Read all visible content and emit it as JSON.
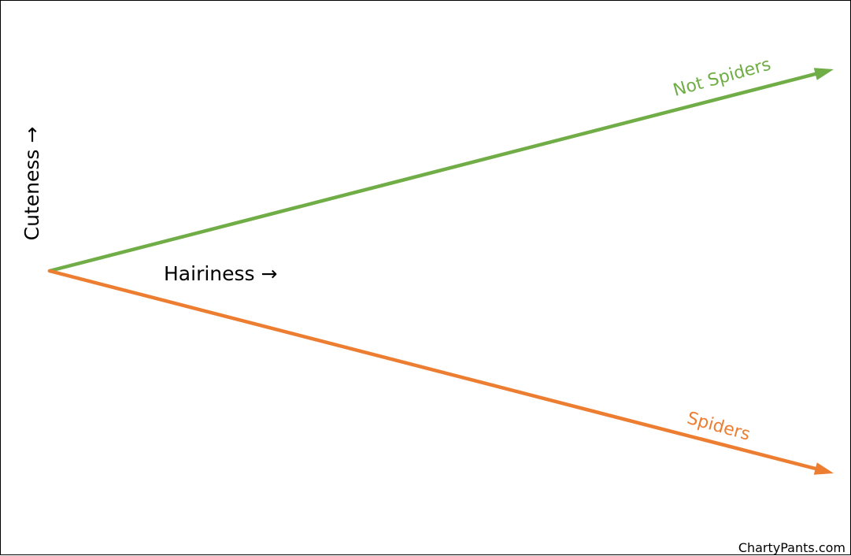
{
  "chart_data": {
    "type": "line",
    "xlabel": "Hairiness →",
    "ylabel": "Cuteness →",
    "grid": false,
    "legend": "none",
    "series": [
      {
        "name": "Not Spiders",
        "color": "#70AD47",
        "trend": "increasing",
        "arrowhead": true
      },
      {
        "name": "Spiders",
        "color": "#ED7D31",
        "trend": "decreasing",
        "arrowhead": true
      }
    ]
  },
  "credit": "ChartyPants.com"
}
